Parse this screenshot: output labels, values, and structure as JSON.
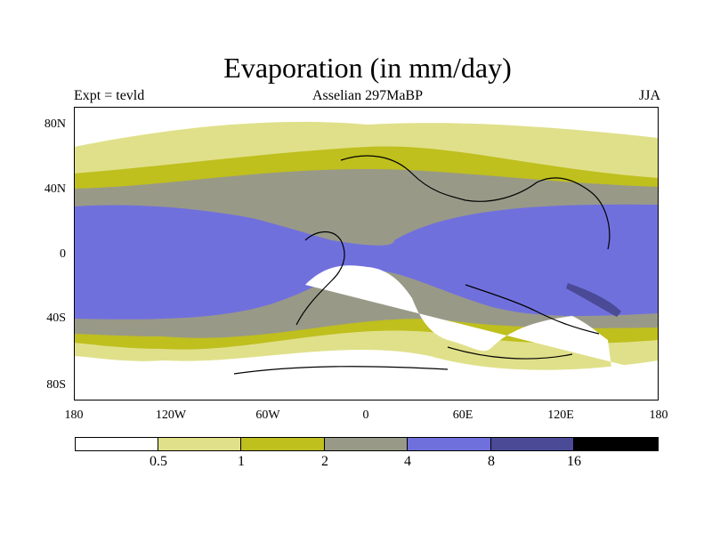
{
  "title": "Evaporation (in mm/day)",
  "subtitle_left": "Expt = tevld",
  "subtitle_center": "Asselian 297MaBP",
  "subtitle_right": "JJA",
  "latitude_labels": [
    "80N",
    "40N",
    "0",
    "40S",
    "80S"
  ],
  "longitude_labels": [
    "180",
    "120W",
    "60W",
    "0",
    "60E",
    "120E",
    "180"
  ],
  "colorbar": {
    "boundaries": [
      "0.5",
      "1",
      "2",
      "4",
      "8",
      "16"
    ],
    "colors": [
      "#ffffff",
      "#e0e08a",
      "#bfbf1e",
      "#999988",
      "#7070dd",
      "#4a4a96",
      "#000000"
    ]
  }
}
